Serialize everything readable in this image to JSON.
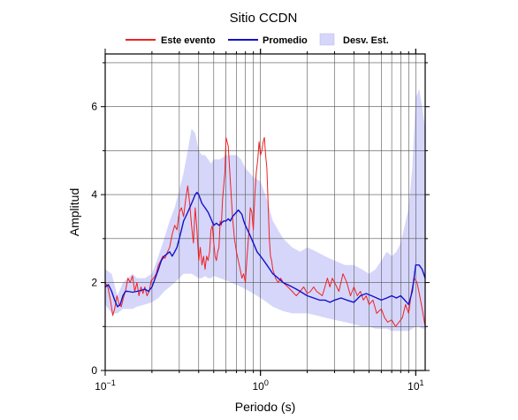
{
  "chart_data": {
    "type": "line",
    "title": "Sitio CCDN",
    "xlabel": "Periodo (s)",
    "ylabel": "Amplitud",
    "xscale": "log",
    "xlim": [
      0.1,
      11.5
    ],
    "ylim": [
      0,
      7.2
    ],
    "grid": true,
    "legend_position": "top",
    "x_ticks": [
      {
        "value": 0.1,
        "base": "10",
        "exp": "−1"
      },
      {
        "value": 1,
        "base": "10",
        "exp": "0"
      },
      {
        "value": 10,
        "base": "10",
        "exp": "1"
      }
    ],
    "y_ticks": [
      {
        "value": 0,
        "label": "0"
      },
      {
        "value": 2,
        "label": "2"
      },
      {
        "value": 4,
        "label": "4"
      },
      {
        "value": 6,
        "label": "6"
      }
    ],
    "legend": [
      {
        "label": "Este evento",
        "kind": "line",
        "color": "#ee2222"
      },
      {
        "label": "Promedio",
        "kind": "line",
        "color": "#1111cc"
      },
      {
        "label": "Desv. Est.",
        "kind": "band",
        "color": "#d6d6fb"
      }
    ],
    "colors": {
      "este_evento": "#ee2222",
      "promedio": "#1111cc",
      "band": "#d6d6fb"
    },
    "series": [
      {
        "name": "Este evento",
        "color": "#ee2222",
        "x": [
          0.1,
          0.104,
          0.108,
          0.112,
          0.115,
          0.119,
          0.123,
          0.127,
          0.131,
          0.135,
          0.14,
          0.145,
          0.15,
          0.155,
          0.16,
          0.165,
          0.17,
          0.175,
          0.18,
          0.186,
          0.192,
          0.198,
          0.205,
          0.213,
          0.22,
          0.228,
          0.235,
          0.243,
          0.252,
          0.26,
          0.27,
          0.28,
          0.29,
          0.3,
          0.31,
          0.32,
          0.33,
          0.34,
          0.35,
          0.36,
          0.37,
          0.38,
          0.39,
          0.4,
          0.41,
          0.42,
          0.43,
          0.44,
          0.45,
          0.46,
          0.47,
          0.48,
          0.49,
          0.5,
          0.51,
          0.52,
          0.53,
          0.54,
          0.55,
          0.56,
          0.57,
          0.58,
          0.59,
          0.6,
          0.62,
          0.64,
          0.66,
          0.68,
          0.7,
          0.72,
          0.74,
          0.76,
          0.78,
          0.8,
          0.82,
          0.84,
          0.86,
          0.88,
          0.9,
          0.92,
          0.94,
          0.96,
          0.98,
          1.0,
          1.02,
          1.04,
          1.06,
          1.08,
          1.1,
          1.12,
          1.14,
          1.16,
          1.18,
          1.2,
          1.25,
          1.3,
          1.35,
          1.4,
          1.5,
          1.6,
          1.7,
          1.8,
          1.9,
          2.0,
          2.1,
          2.2,
          2.3,
          2.4,
          2.5,
          2.6,
          2.7,
          2.8,
          2.9,
          3.0,
          3.2,
          3.4,
          3.6,
          3.8,
          4.0,
          4.2,
          4.4,
          4.6,
          4.8,
          5.0,
          5.3,
          5.6,
          6.0,
          6.3,
          6.6,
          7.0,
          7.4,
          7.8,
          8.2,
          8.6,
          9.0,
          9.4,
          9.8,
          10.2,
          10.6,
          11.0,
          11.5
        ],
        "y": [
          2.0,
          1.9,
          1.6,
          1.25,
          1.4,
          1.7,
          1.5,
          1.45,
          1.65,
          1.8,
          2.1,
          2.0,
          2.15,
          1.8,
          2.0,
          1.7,
          1.9,
          1.75,
          1.9,
          1.7,
          1.8,
          2.05,
          2.1,
          2.2,
          2.4,
          2.5,
          2.6,
          2.55,
          2.7,
          2.8,
          3.1,
          3.3,
          3.2,
          3.6,
          3.7,
          3.5,
          3.9,
          4.2,
          3.8,
          3.3,
          2.9,
          3.7,
          3.2,
          2.5,
          2.8,
          2.4,
          2.6,
          2.3,
          2.6,
          2.5,
          2.7,
          3.2,
          3.3,
          2.9,
          2.6,
          2.5,
          2.7,
          2.8,
          3.4,
          3.3,
          3.9,
          4.2,
          4.5,
          5.3,
          5.1,
          4.3,
          3.5,
          3.0,
          2.7,
          2.5,
          2.3,
          2.1,
          2.2,
          2.0,
          2.6,
          3.1,
          3.7,
          3.6,
          3.2,
          4.0,
          4.5,
          4.8,
          5.2,
          4.9,
          5.0,
          5.2,
          5.3,
          4.9,
          4.6,
          3.8,
          3.0,
          2.6,
          2.5,
          2.3,
          2.1,
          2.0,
          2.1,
          2.0,
          1.9,
          1.8,
          1.7,
          1.8,
          1.9,
          1.75,
          1.8,
          1.9,
          1.8,
          1.75,
          1.7,
          1.9,
          2.1,
          1.9,
          2.1,
          2.0,
          1.8,
          2.2,
          2.0,
          1.7,
          1.9,
          1.7,
          1.8,
          1.6,
          1.7,
          1.5,
          1.6,
          1.3,
          1.4,
          1.2,
          1.1,
          1.15,
          1.0,
          1.1,
          1.2,
          1.5,
          1.3,
          1.8,
          2.1,
          2.0,
          1.7,
          1.4,
          1.0
        ]
      },
      {
        "name": "Promedio",
        "color": "#1111cc",
        "x": [
          0.1,
          0.105,
          0.11,
          0.115,
          0.12,
          0.125,
          0.13,
          0.135,
          0.14,
          0.15,
          0.16,
          0.17,
          0.18,
          0.19,
          0.2,
          0.21,
          0.22,
          0.23,
          0.24,
          0.25,
          0.26,
          0.27,
          0.28,
          0.29,
          0.3,
          0.31,
          0.32,
          0.33,
          0.34,
          0.35,
          0.36,
          0.37,
          0.38,
          0.39,
          0.4,
          0.42,
          0.44,
          0.46,
          0.48,
          0.5,
          0.52,
          0.54,
          0.56,
          0.58,
          0.6,
          0.62,
          0.64,
          0.66,
          0.68,
          0.7,
          0.72,
          0.74,
          0.76,
          0.78,
          0.8,
          0.85,
          0.9,
          0.95,
          1.0,
          1.05,
          1.1,
          1.15,
          1.2,
          1.3,
          1.4,
          1.5,
          1.6,
          1.7,
          1.8,
          2.0,
          2.2,
          2.4,
          2.6,
          2.8,
          3.0,
          3.3,
          3.6,
          4.0,
          4.4,
          4.8,
          5.2,
          5.6,
          6.0,
          6.5,
          7.0,
          7.5,
          8.0,
          8.5,
          9.0,
          9.5,
          10.0,
          10.5,
          11.0,
          11.5
        ],
        "y": [
          1.9,
          1.95,
          1.8,
          1.6,
          1.45,
          1.5,
          1.7,
          1.8,
          1.8,
          1.78,
          1.8,
          1.82,
          1.85,
          1.8,
          1.9,
          2.1,
          2.3,
          2.5,
          2.6,
          2.65,
          2.7,
          2.6,
          2.7,
          2.8,
          3.0,
          3.2,
          3.4,
          3.5,
          3.6,
          3.7,
          3.8,
          3.9,
          4.0,
          4.05,
          4.0,
          3.8,
          3.7,
          3.6,
          3.45,
          3.3,
          3.35,
          3.3,
          3.35,
          3.4,
          3.4,
          3.45,
          3.4,
          3.5,
          3.55,
          3.6,
          3.65,
          3.6,
          3.55,
          3.4,
          3.3,
          3.1,
          2.9,
          2.7,
          2.6,
          2.5,
          2.4,
          2.3,
          2.2,
          2.1,
          2.0,
          1.95,
          1.9,
          1.85,
          1.8,
          1.7,
          1.65,
          1.6,
          1.6,
          1.55,
          1.6,
          1.65,
          1.6,
          1.55,
          1.7,
          1.75,
          1.7,
          1.65,
          1.6,
          1.65,
          1.7,
          1.65,
          1.7,
          1.6,
          1.5,
          1.8,
          2.4,
          2.4,
          2.3,
          2.1
        ]
      }
    ],
    "band": {
      "name": "Desv. Est.",
      "x": [
        0.1,
        0.11,
        0.12,
        0.13,
        0.14,
        0.15,
        0.16,
        0.18,
        0.2,
        0.22,
        0.24,
        0.26,
        0.28,
        0.3,
        0.32,
        0.34,
        0.36,
        0.38,
        0.4,
        0.42,
        0.44,
        0.46,
        0.48,
        0.5,
        0.55,
        0.6,
        0.65,
        0.7,
        0.75,
        0.8,
        0.9,
        1.0,
        1.1,
        1.2,
        1.4,
        1.6,
        1.8,
        2.0,
        2.3,
        2.6,
        3.0,
        3.5,
        4.0,
        4.5,
        5.0,
        5.5,
        6.0,
        6.5,
        7.0,
        7.5,
        8.0,
        8.5,
        9.0,
        9.5,
        10.0,
        10.5,
        11.0,
        11.5
      ],
      "upper": [
        2.3,
        2.2,
        1.7,
        2.0,
        2.1,
        2.2,
        2.1,
        2.1,
        2.2,
        2.6,
        3.0,
        3.4,
        3.7,
        4.1,
        4.5,
        5.0,
        5.5,
        5.4,
        5.0,
        4.9,
        4.9,
        4.8,
        4.7,
        4.8,
        4.8,
        4.9,
        4.9,
        4.9,
        4.8,
        4.6,
        4.4,
        4.3,
        3.9,
        3.4,
        3.0,
        2.8,
        2.7,
        2.8,
        2.7,
        2.6,
        2.5,
        2.4,
        2.4,
        2.3,
        2.2,
        2.3,
        2.5,
        2.7,
        2.6,
        2.7,
        2.9,
        3.3,
        3.7,
        4.6,
        6.2,
        6.4,
        6.0,
        5.5
      ],
      "lower": [
        1.5,
        1.3,
        1.3,
        1.4,
        1.4,
        1.4,
        1.45,
        1.5,
        1.55,
        1.65,
        1.8,
        1.9,
        2.0,
        2.1,
        2.2,
        2.2,
        2.2,
        2.15,
        2.1,
        2.1,
        2.15,
        2.1,
        2.1,
        2.15,
        2.1,
        2.05,
        2.0,
        1.95,
        1.9,
        1.85,
        1.75,
        1.65,
        1.55,
        1.45,
        1.35,
        1.3,
        1.3,
        1.3,
        1.25,
        1.2,
        1.15,
        1.1,
        1.05,
        1.0,
        1.0,
        0.95,
        0.95,
        0.95,
        0.9,
        0.9,
        0.9,
        0.9,
        0.9,
        0.95,
        1.0,
        1.0,
        0.95,
        0.95
      ]
    }
  }
}
